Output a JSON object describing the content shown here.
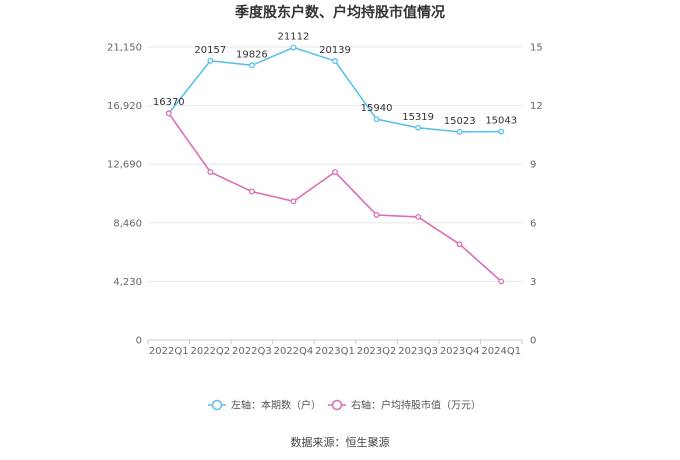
{
  "chart_data": {
    "type": "line",
    "title": "季度股东户数、户均持股市值情况",
    "categories": [
      "2022Q1",
      "2022Q2",
      "2022Q3",
      "2022Q4",
      "2023Q1",
      "2023Q2",
      "2023Q3",
      "2023Q4",
      "2024Q1"
    ],
    "y_left": {
      "ticks": [
        0,
        4230,
        8460,
        12690,
        16920,
        21150
      ],
      "tick_labels": [
        "0",
        "4,230",
        "8,460",
        "12,690",
        "16,920",
        "21,150"
      ],
      "ylim": [
        0,
        21150
      ]
    },
    "y_right": {
      "ticks": [
        0,
        3,
        6,
        9,
        12,
        15
      ],
      "tick_labels": [
        "0",
        "3",
        "6",
        "9",
        "12",
        "15"
      ],
      "ylim": [
        0,
        15
      ]
    },
    "series": [
      {
        "name": "左轴：本期数（户）",
        "axis": "left",
        "color": "#5bc0eb",
        "values": [
          16370,
          20157,
          19826,
          21112,
          20139,
          15940,
          15319,
          15023,
          15043
        ],
        "labels": [
          "16370",
          "20157",
          "19826",
          "21112",
          "20139",
          "15940",
          "15319",
          "15023",
          "15043"
        ]
      },
      {
        "name": "右轴：户均持股市值（万元）",
        "axis": "right",
        "color": "#d96fb5",
        "values": [
          11.6,
          8.6,
          7.6,
          7.1,
          8.6,
          6.4,
          6.3,
          4.9,
          3.0
        ]
      }
    ],
    "grid": true,
    "legend": "bottom"
  },
  "source": "数据来源：恒生聚源"
}
